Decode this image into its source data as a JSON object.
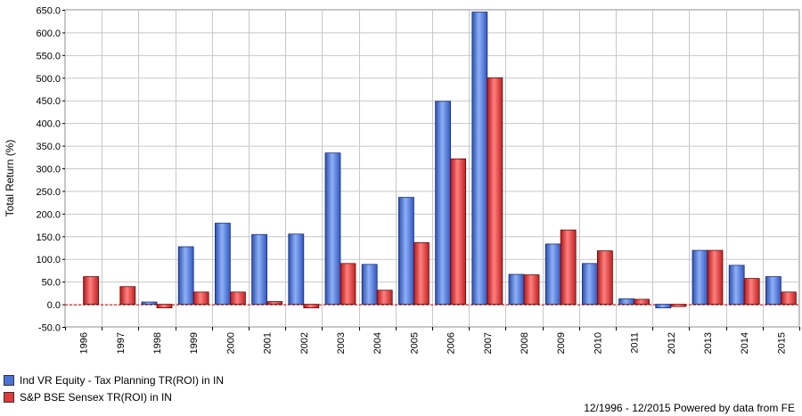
{
  "chart_data": {
    "type": "bar",
    "ylabel": "Total Return (%)",
    "ylim": [
      -50,
      650
    ],
    "yticks": [
      "650.0",
      "600.0",
      "550.0",
      "500.0",
      "450.0",
      "400.0",
      "350.0",
      "300.0",
      "250.0",
      "200.0",
      "150.0",
      "100.0",
      "50.0",
      "0.0",
      "-50.0"
    ],
    "ytick_values": [
      650,
      600,
      550,
      500,
      450,
      400,
      350,
      300,
      250,
      200,
      150,
      100,
      50,
      0,
      -50
    ],
    "categories": [
      "1996",
      "1997",
      "1998",
      "1999",
      "2000",
      "2001",
      "2002",
      "2003",
      "2004",
      "2005",
      "2006",
      "2007",
      "2008",
      "2009",
      "2010",
      "2011",
      "2012",
      "2013",
      "2014",
      "2015"
    ],
    "grid": true,
    "legend_position": "bottom-left",
    "series": [
      {
        "name": "Ind VR Equity - Tax Planning TR(ROI) in IN",
        "color": "#4a72d6",
        "values": [
          null,
          null,
          5,
          127,
          179,
          154,
          155,
          334,
          88,
          236,
          448,
          645,
          66,
          133,
          90,
          12,
          -8,
          119,
          86,
          61
        ]
      },
      {
        "name": "S&P BSE Sensex TR(ROI) in IN",
        "color": "#e03a3a",
        "values": [
          61,
          39,
          -8,
          27,
          27,
          6,
          -8,
          90,
          31,
          136,
          321,
          500,
          65,
          164,
          118,
          11,
          -5,
          119,
          57,
          27
        ]
      }
    ]
  },
  "footer": {
    "date_range": "12/1996 - 12/2015 Powered by data from FE"
  }
}
